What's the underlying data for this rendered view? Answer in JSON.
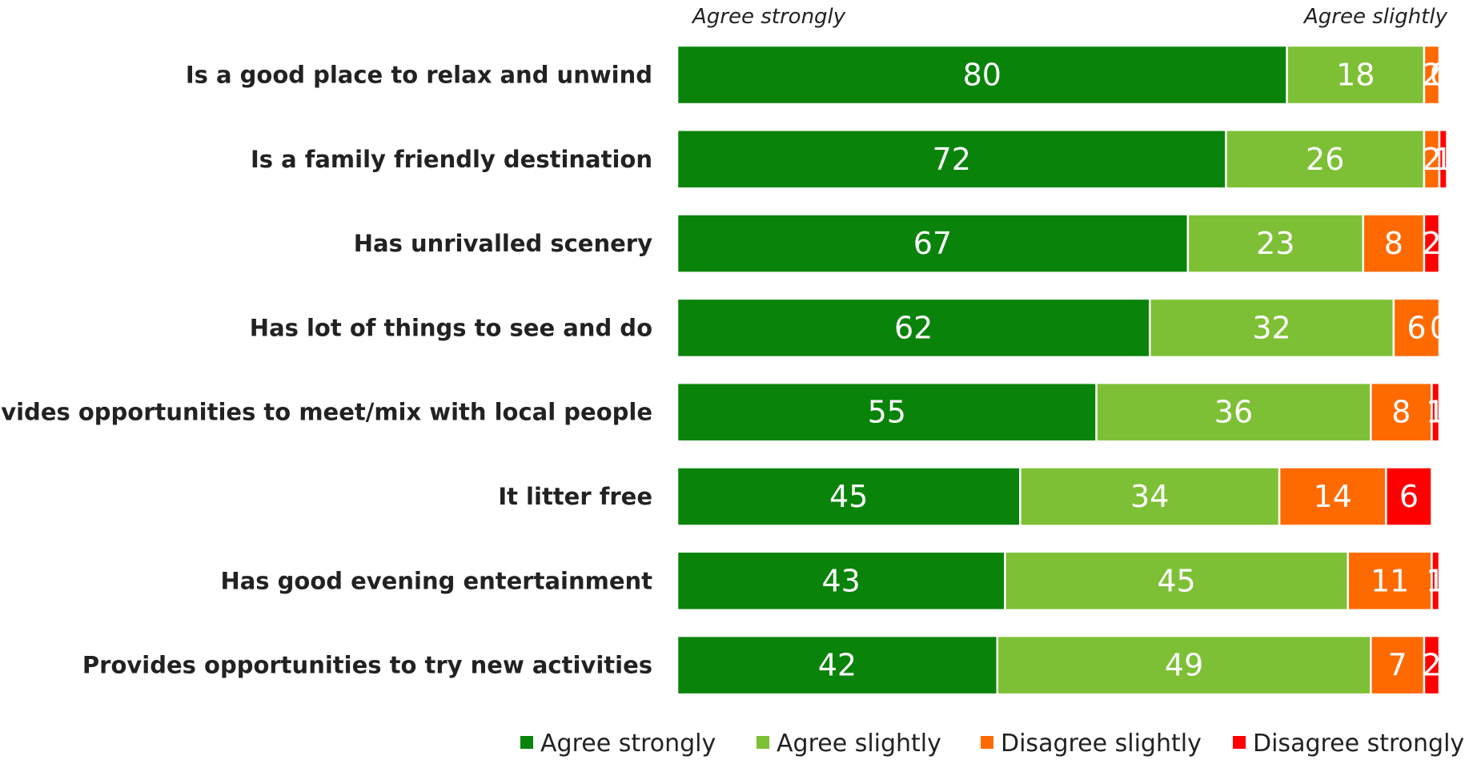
{
  "chart_data": {
    "type": "bar",
    "orientation": "horizontal",
    "stacked": true,
    "column_headers": [
      "Agree strongly",
      "Agree slightly"
    ],
    "categories": [
      "Is a good place to relax and unwind",
      "Is a family friendly destination",
      "Has unrivalled scenery",
      "Has lot of things to see and do",
      "Provides opportunities to meet/mix with local people",
      "It litter free",
      "Has good evening entertainment",
      "Provides opportunities to try new activities"
    ],
    "series": [
      {
        "name": "Agree strongly",
        "color": "#0a830a",
        "values": [
          80,
          72,
          67,
          62,
          55,
          45,
          43,
          42
        ]
      },
      {
        "name": "Agree slightly",
        "color": "#7dc035",
        "values": [
          18,
          26,
          23,
          32,
          36,
          34,
          45,
          49
        ]
      },
      {
        "name": "Disagree slightly",
        "color": "#ff6a00",
        "values": [
          2,
          2,
          8,
          6,
          8,
          14,
          11,
          7
        ]
      },
      {
        "name": "Disagree strongly",
        "color": "#ff0000",
        "values": [
          0,
          1,
          2,
          0,
          1,
          6,
          1,
          2
        ]
      }
    ],
    "xlim": [
      0,
      100
    ],
    "legend_position": "bottom",
    "grid": false
  }
}
